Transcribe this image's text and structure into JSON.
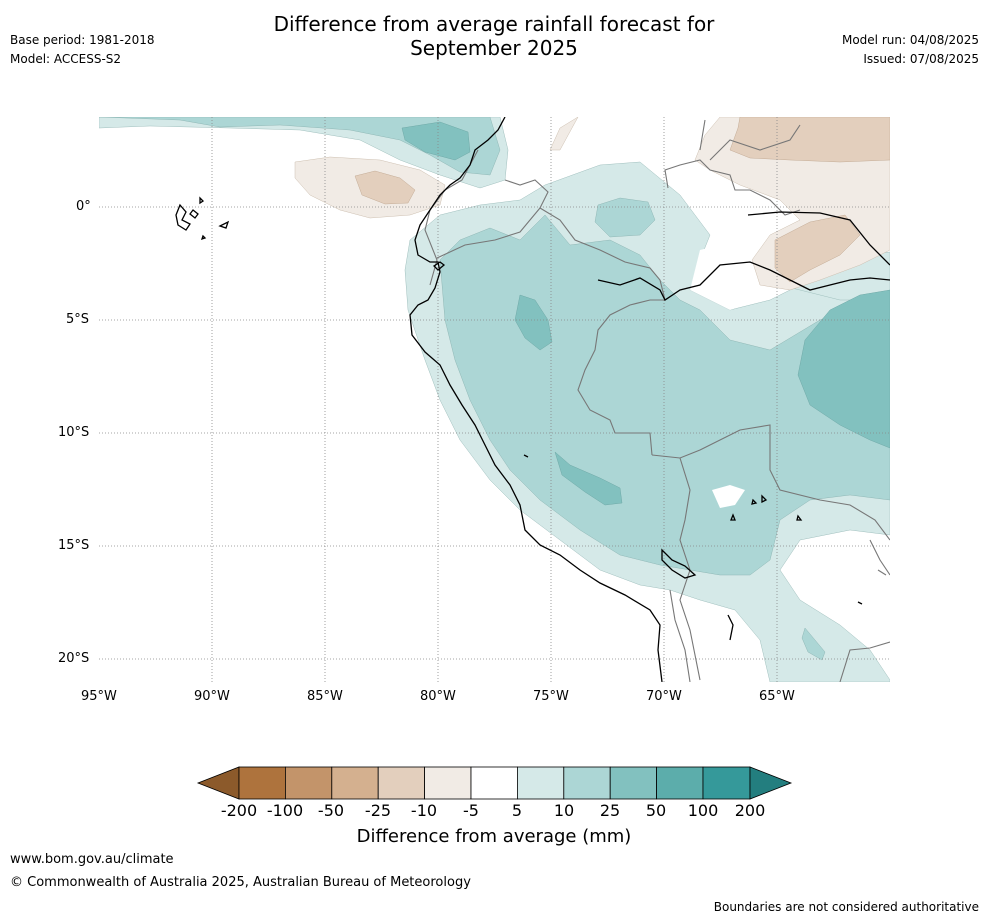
{
  "header": {
    "title_line1": "Difference from average rainfall forecast for",
    "title_line2": "September 2025",
    "base_period": "Base period: 1981-2018",
    "model": "Model: ACCESS-S2",
    "model_run": "Model run: 04/08/2025",
    "issued": "Issued: 07/08/2025"
  },
  "map": {
    "lat_labels": [
      "0°",
      "5°S",
      "10°S",
      "15°S",
      "20°S"
    ],
    "lon_labels": [
      "95°W",
      "90°W",
      "85°W",
      "80°W",
      "75°W",
      "70°W",
      "65°W"
    ],
    "colors": {
      "dry_200": "#8c5a2b",
      "dry_100": "#ae733d",
      "dry_50": "#c3946a",
      "dry_25": "#d4b08f",
      "dry_10": "#e3cfbd",
      "dry_5": "#f1ebe5",
      "neutral": "#ffffff",
      "wet_5": "#d5e9e8",
      "wet_10": "#acd6d5",
      "wet_25": "#82c1bf",
      "wet_50": "#5cadab",
      "wet_100": "#35999a",
      "wet_200": "#237e7f",
      "coast": "#000000",
      "border": "#777777",
      "grid": "#888888"
    }
  },
  "colorbar": {
    "ticks": [
      "-200",
      "-100",
      "-50",
      "-25",
      "-10",
      "-5",
      "5",
      "10",
      "25",
      "50",
      "100",
      "200"
    ],
    "label": "Difference from average (mm)"
  },
  "footer": {
    "url": "www.bom.gov.au/climate",
    "copyright": "© Commonwealth of Australia 2025, Australian Bureau of Meteorology",
    "disclaimer": "Boundaries are not considered authoritative"
  }
}
